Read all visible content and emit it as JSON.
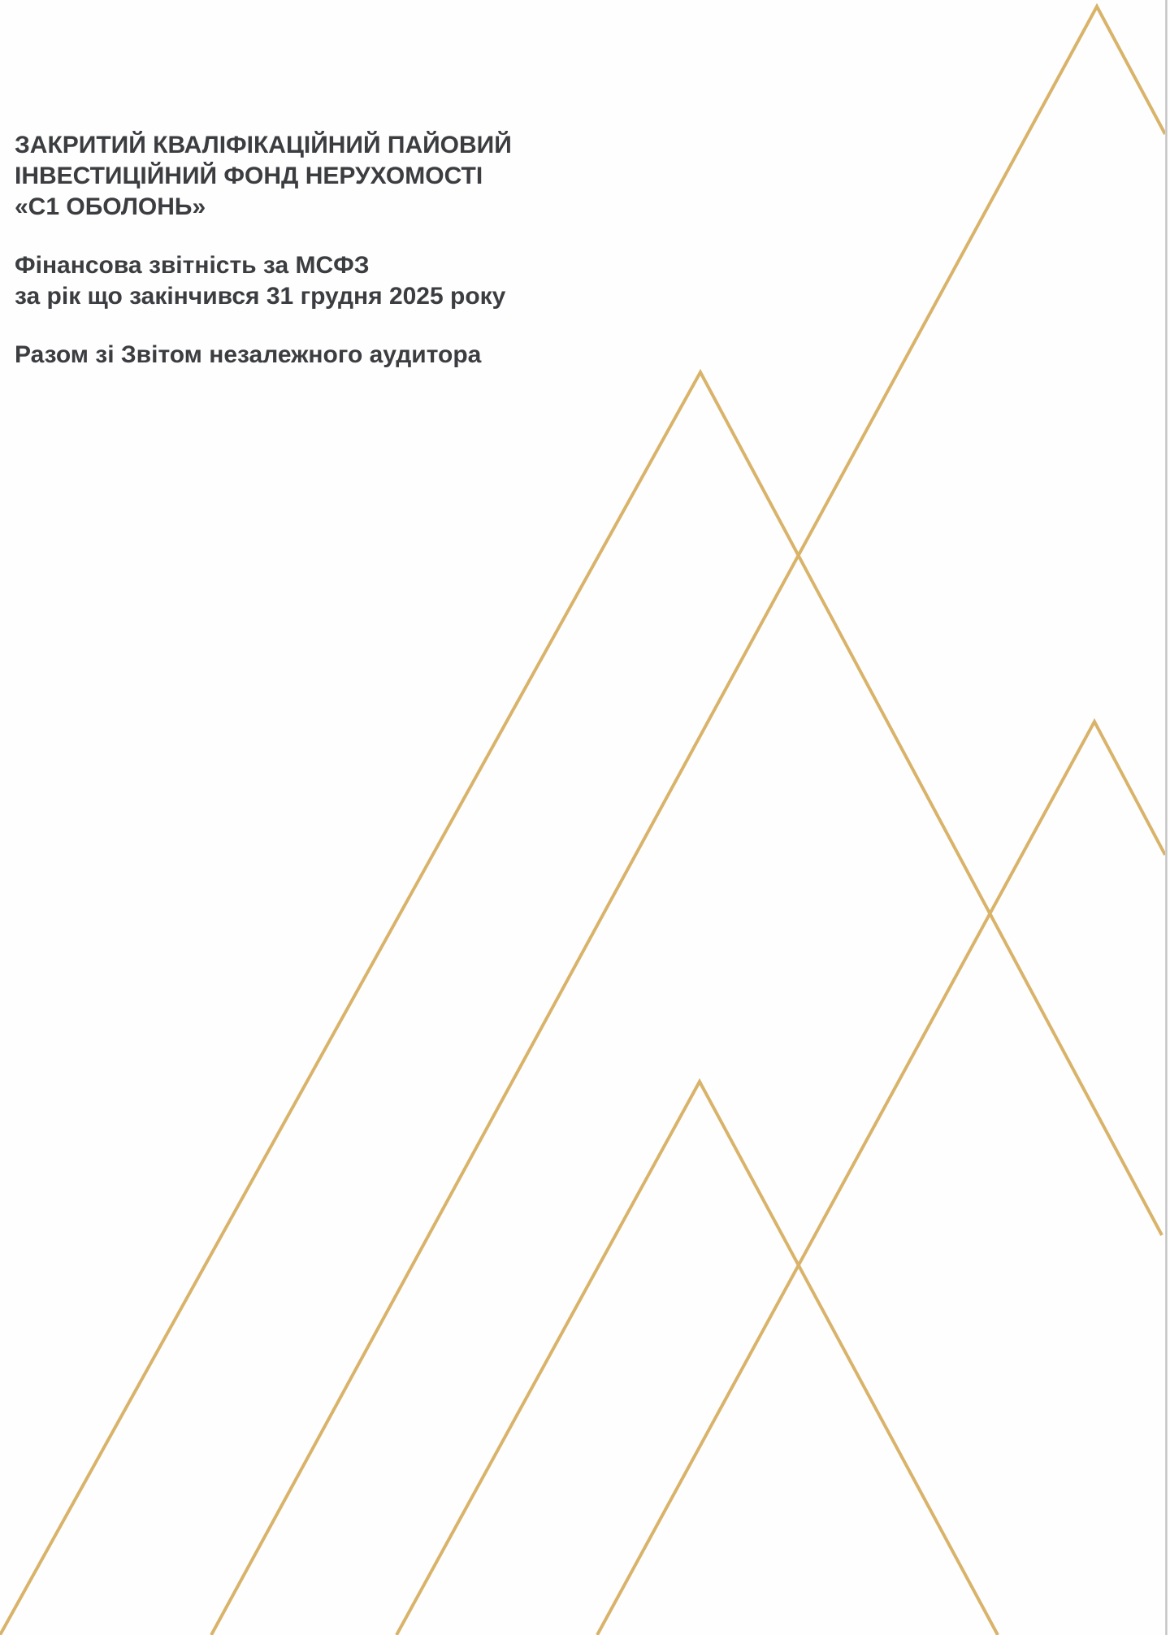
{
  "document": {
    "title_lines": [
      "ЗАКРИТИЙ КВАЛІФІКАЦІЙНИЙ ПАЙОВИЙ",
      "ІНВЕСТИЦІЙНИЙ ФОНД НЕРУХОМОСТІ",
      "«С1 ОБОЛОНЬ»"
    ],
    "subtitle_lines": [
      "Фінансова звітність за МСФЗ",
      "за рік що закінчився 31 грудня 2025 року"
    ],
    "auditor_line": "Разом зі Звітом незалежного аудитора"
  },
  "decoration": {
    "line_color": "#d9b36a",
    "shape": "triangle-outlines"
  }
}
